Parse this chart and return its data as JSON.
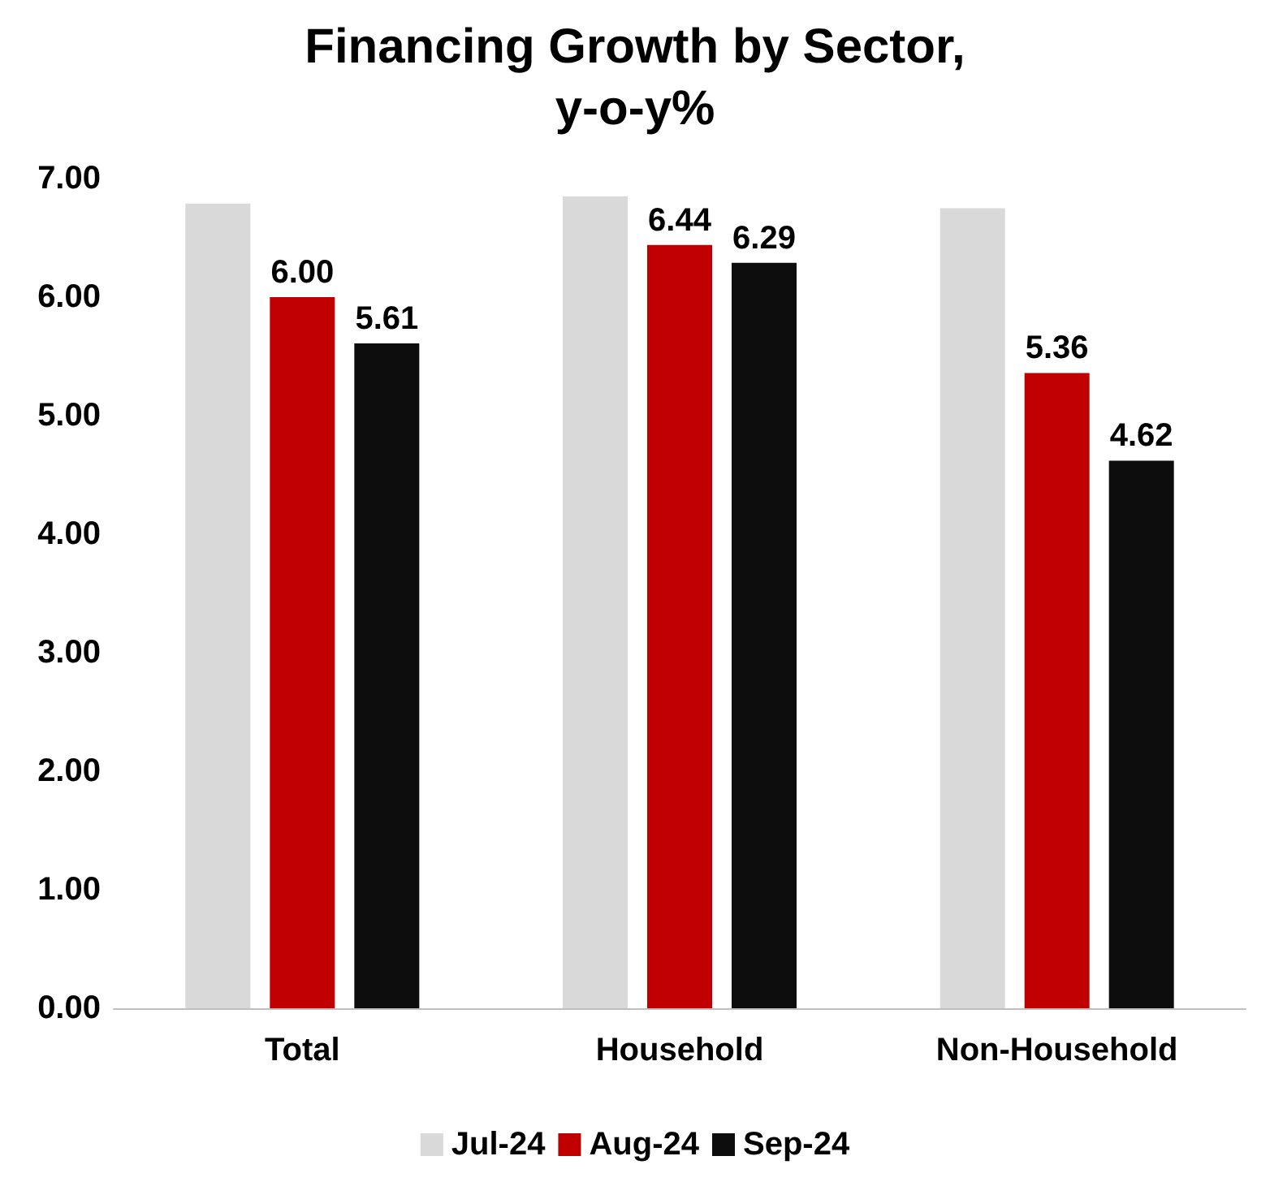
{
  "chart_data": {
    "type": "bar",
    "title": "Financing Growth by Sector,\ny-o-y%",
    "categories": [
      "Total",
      "Household",
      "Non-Household"
    ],
    "series": [
      {
        "name": "Jul-24",
        "color": "#d9d9d9",
        "values": [
          6.79,
          6.85,
          6.75
        ],
        "value_labels": [
          null,
          null,
          null
        ]
      },
      {
        "name": "Aug-24",
        "color": "#c00000",
        "values": [
          6.0,
          6.44,
          5.36
        ],
        "value_labels": [
          "6.00",
          "6.44",
          "5.36"
        ]
      },
      {
        "name": "Sep-24",
        "color": "#0d0d0d",
        "values": [
          5.61,
          6.29,
          4.62
        ],
        "value_labels": [
          "5.61",
          "6.29",
          "4.62"
        ]
      }
    ],
    "ylim": [
      0,
      7
    ],
    "yticks": [
      {
        "value": 0,
        "label": "0.00"
      },
      {
        "value": 1,
        "label": "1.00"
      },
      {
        "value": 2,
        "label": "2.00"
      },
      {
        "value": 3,
        "label": "3.00"
      },
      {
        "value": 4,
        "label": "4.00"
      },
      {
        "value": 5,
        "label": "5.00"
      },
      {
        "value": 6,
        "label": "6.00"
      },
      {
        "value": 7,
        "label": "7.00"
      }
    ],
    "grid": false,
    "legend": "bottom"
  }
}
